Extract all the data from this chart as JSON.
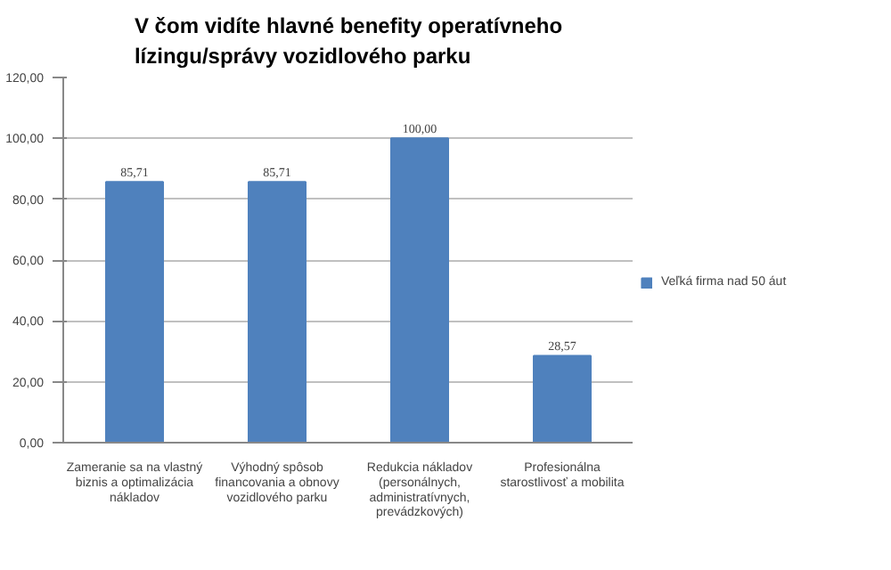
{
  "chart_data": {
    "type": "bar",
    "title": "V čom vidíte hlavné benefity operatívneho lízingu/správy vozidlového parku",
    "categories": [
      "Zameranie sa na vlastný biznis a optimalizácia nákladov",
      "Výhodný spôsob financovania a obnovy vozidlového parku",
      "Redukcia nákladov (personálnych, administratívnych, prevádzkových)",
      "Profesionálna starostlivosť a mobilita"
    ],
    "series": [
      {
        "name": "Veľká firma nad 50 áut",
        "color": "#4f81bd",
        "values": [
          85.71,
          85.71,
          100,
          28.57
        ],
        "value_labels": [
          "85,71",
          "85,71",
          "100,00",
          "28,57"
        ]
      }
    ],
    "ylim": [
      0,
      120
    ],
    "yticks": [
      {
        "value": 0,
        "label": "0,00"
      },
      {
        "value": 20,
        "label": "20,00"
      },
      {
        "value": 40,
        "label": "40,00"
      },
      {
        "value": 60,
        "label": "60,00"
      },
      {
        "value": 80,
        "label": "80,00"
      },
      {
        "value": 100,
        "label": "100,00"
      },
      {
        "value": 120,
        "label": "120,00"
      }
    ],
    "grid": "y",
    "legend": "right"
  }
}
